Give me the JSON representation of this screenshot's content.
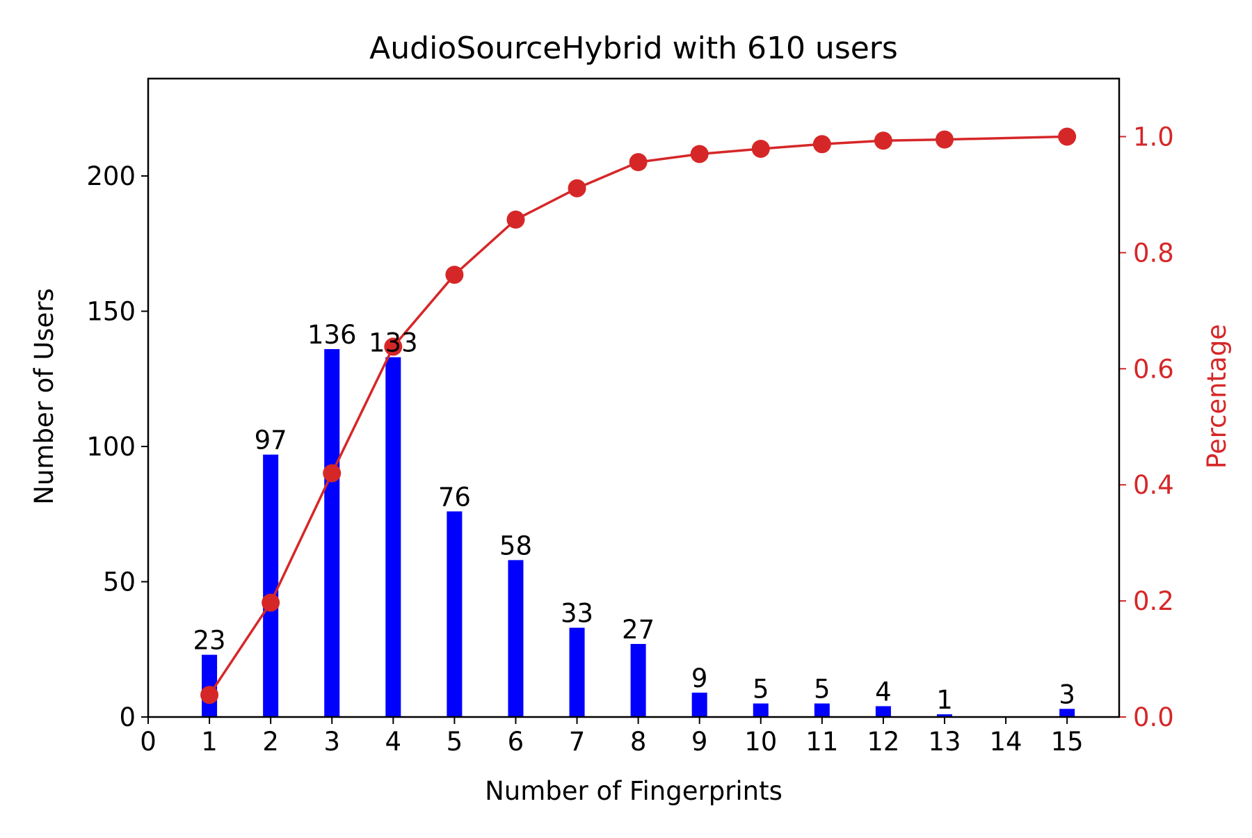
{
  "chart_data": {
    "type": "bar",
    "title": "AudioSourceHybrid with 610 users",
    "xlabel": "Number of Fingerprints",
    "ylabel": "Number of Users",
    "ylabel_right": "Percentage",
    "xlim": [
      0,
      15.85
    ],
    "ylim": [
      0,
      236
    ],
    "ylim_right": [
      0,
      1.1
    ],
    "x_ticks": [
      0,
      1,
      2,
      3,
      4,
      5,
      6,
      7,
      8,
      9,
      10,
      11,
      12,
      13,
      14,
      15
    ],
    "y_ticks": [
      0,
      50,
      100,
      150,
      200
    ],
    "y_ticks_right": [
      "0.0",
      "0.2",
      "0.4",
      "0.6",
      "0.8",
      "1.0"
    ],
    "grid": false,
    "series": [
      {
        "type": "bar",
        "axis": "left",
        "color": "#0000ff",
        "x": [
          1,
          2,
          3,
          4,
          5,
          6,
          7,
          8,
          9,
          10,
          11,
          12,
          13,
          15
        ],
        "values": [
          23,
          97,
          136,
          133,
          76,
          58,
          33,
          27,
          9,
          5,
          5,
          4,
          1,
          3
        ],
        "labels": [
          "23",
          "97",
          "136",
          "133",
          "76",
          "58",
          "33",
          "27",
          "9",
          "5",
          "5",
          "4",
          "1",
          "3"
        ]
      },
      {
        "type": "line",
        "axis": "right",
        "color": "#d62728",
        "marker": "circle",
        "x": [
          1,
          2,
          3,
          4,
          5,
          6,
          7,
          8,
          9,
          10,
          11,
          12,
          13,
          15
        ],
        "values": [
          0.038,
          0.197,
          0.42,
          0.638,
          0.762,
          0.857,
          0.911,
          0.956,
          0.97,
          0.979,
          0.987,
          0.993,
          0.995,
          1.0
        ]
      }
    ]
  }
}
